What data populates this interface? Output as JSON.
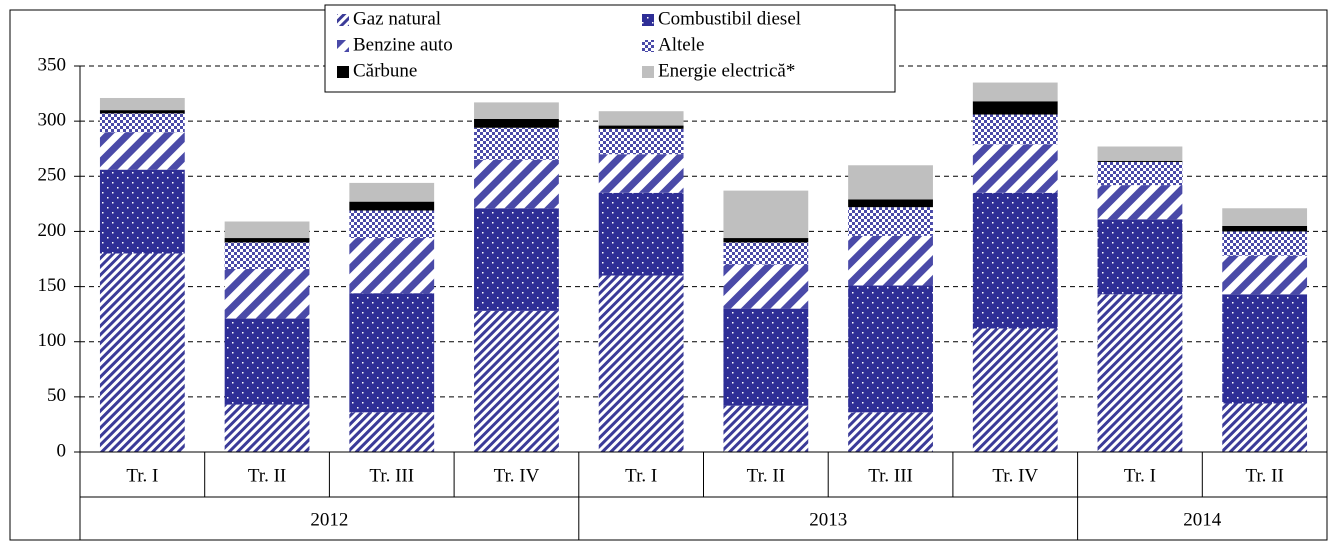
{
  "chart_data": {
    "type": "stacked-bar",
    "groups": [
      {
        "name": "2012",
        "categories": [
          "Tr. I",
          "Tr. II",
          "Tr. III",
          "Tr. IV"
        ]
      },
      {
        "name": "2013",
        "categories": [
          "Tr. I",
          "Tr. II",
          "Tr. III",
          "Tr. IV"
        ]
      },
      {
        "name": "2014",
        "categories": [
          "Tr. I",
          "Tr. II"
        ]
      }
    ],
    "series": [
      {
        "name": "Gaz natural",
        "color": "#3b3b98",
        "pattern": "fine-stripes",
        "values": [
          180,
          43,
          36,
          128,
          160,
          42,
          36,
          112,
          143,
          44
        ]
      },
      {
        "name": "Combustibil diesel",
        "color": "#2e2e96",
        "pattern": "dots",
        "values": [
          76,
          78,
          108,
          93,
          75,
          88,
          115,
          123,
          68,
          99
        ]
      },
      {
        "name": "Benzine auto",
        "color": "#4a4aa8",
        "pattern": "wide-stripes",
        "values": [
          34,
          45,
          50,
          44,
          35,
          40,
          45,
          44,
          31,
          35
        ]
      },
      {
        "name": "Altele",
        "color": "#4a4aa8",
        "pattern": "checks",
        "values": [
          17,
          24,
          25,
          29,
          23,
          20,
          26,
          27,
          21,
          22
        ]
      },
      {
        "name": "Cărbune",
        "color": "#000000",
        "pattern": "solid",
        "values": [
          3,
          4,
          8,
          8,
          3,
          4,
          7,
          12,
          1,
          5
        ]
      },
      {
        "name": "Energie electrică*",
        "color": "#bfbfbf",
        "pattern": "solid",
        "values": [
          11,
          15,
          17,
          15,
          13,
          43,
          31,
          17,
          13,
          16
        ]
      }
    ],
    "ylim": [
      0,
      350
    ],
    "yticks": [
      0,
      50,
      100,
      150,
      200,
      250,
      300,
      350
    ],
    "grid": true
  }
}
